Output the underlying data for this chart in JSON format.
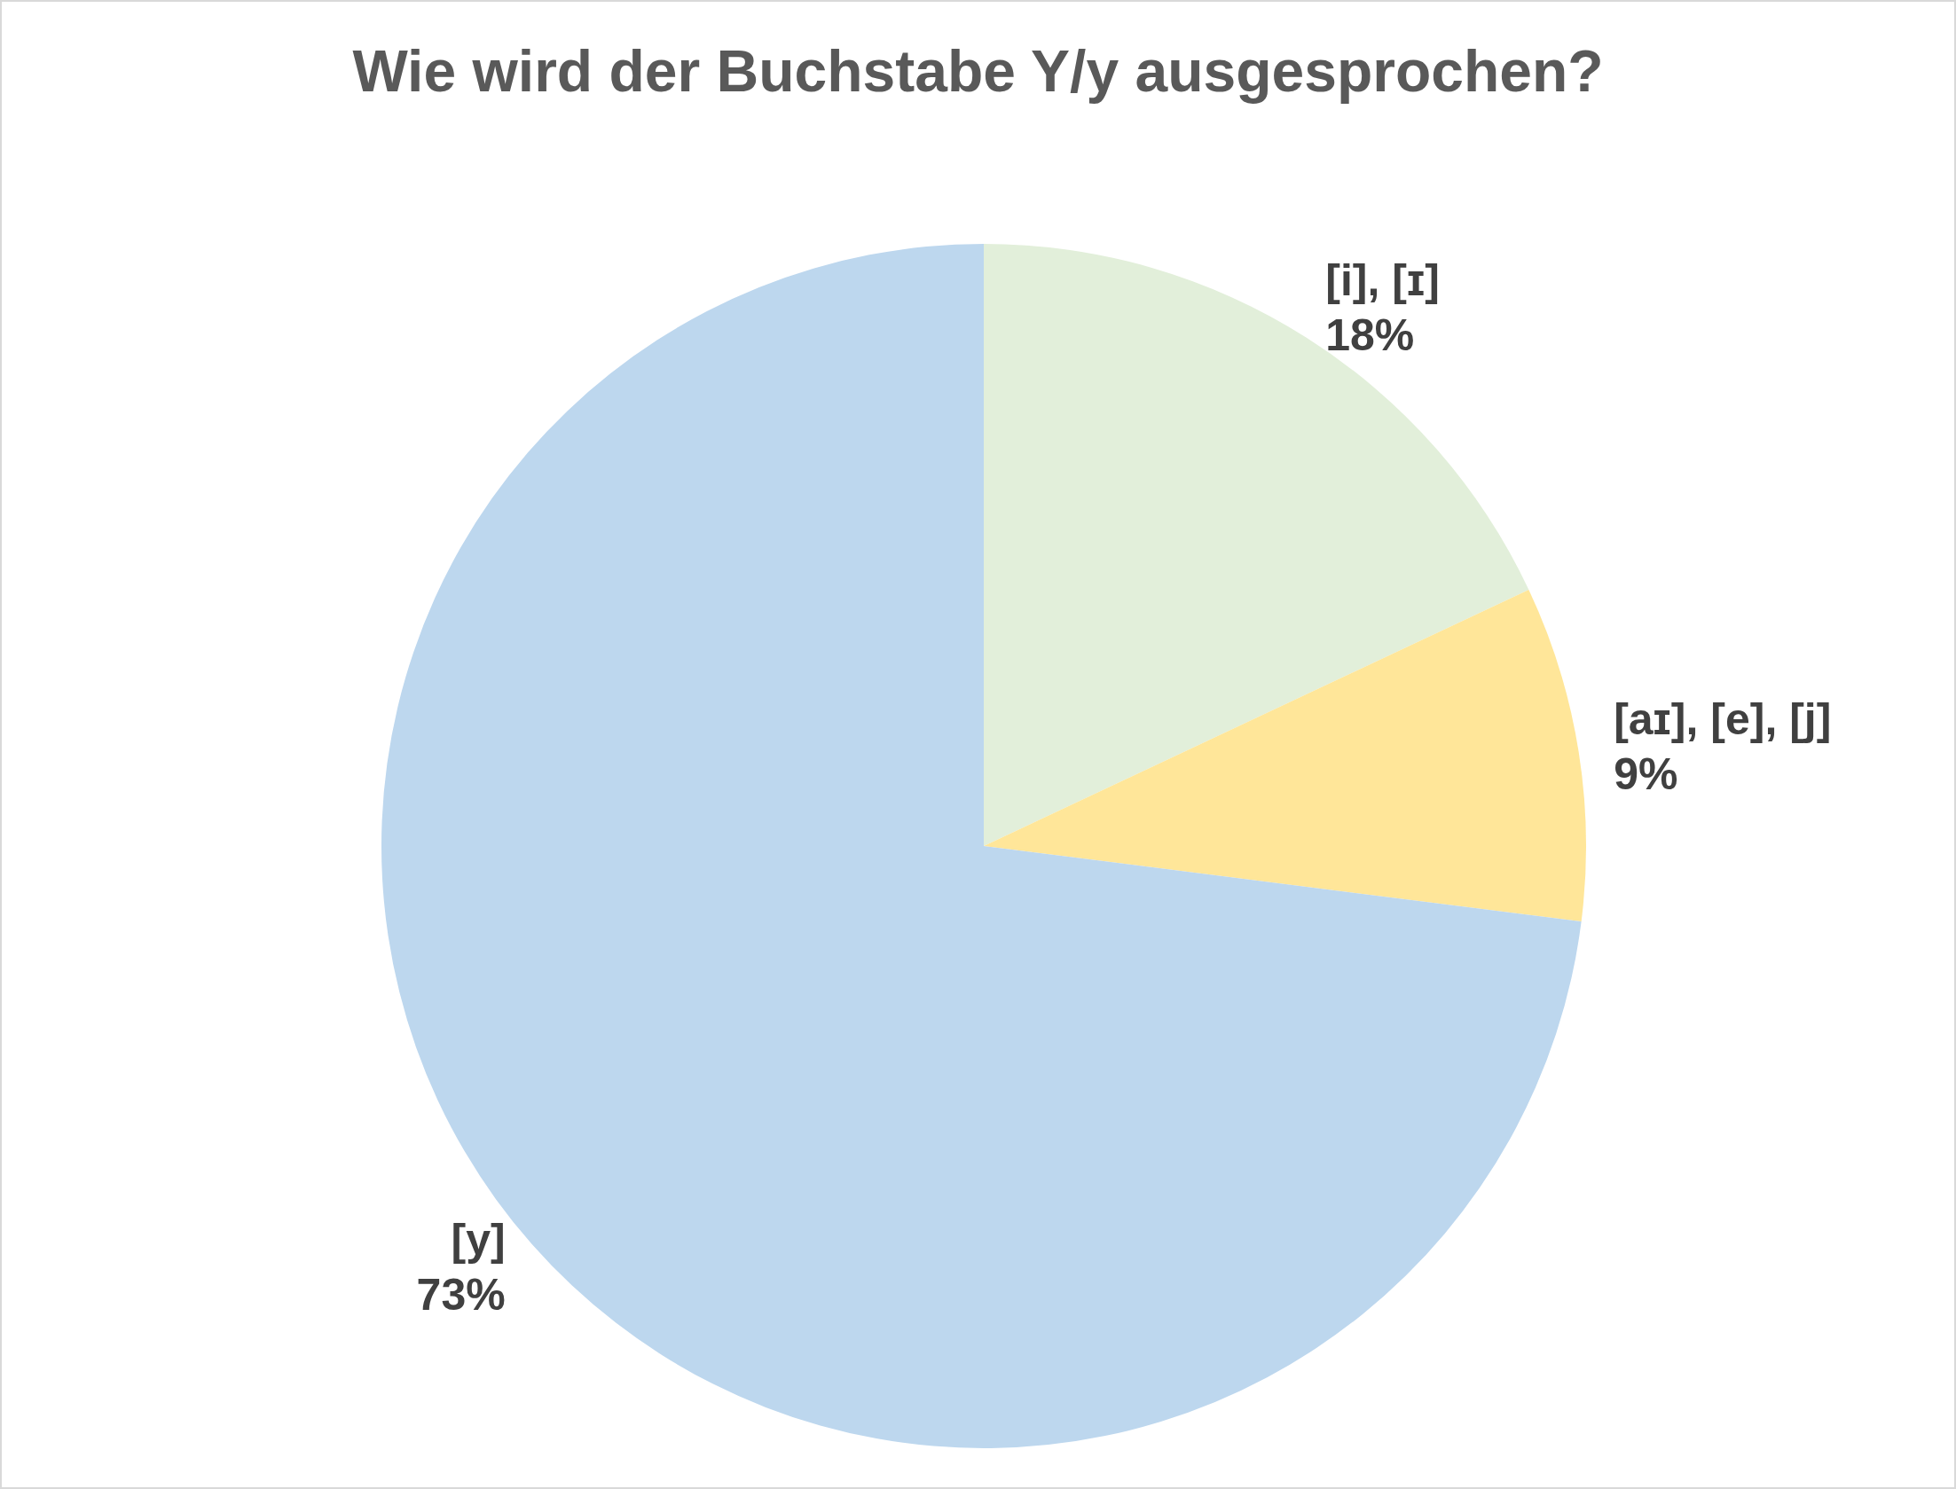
{
  "chart_data": {
    "type": "pie",
    "title": "Wie wird der Buchstabe Y/y ausgesprochen?",
    "categories": [
      "[i], [ɪ]",
      "[aɪ], [e], [j]",
      "[y]"
    ],
    "values": [
      18,
      9,
      73
    ],
    "value_labels": [
      "18%",
      "9%",
      "73%"
    ],
    "colors": [
      "#e2efda",
      "#ffe699",
      "#bdd7ee"
    ],
    "legend": false
  }
}
